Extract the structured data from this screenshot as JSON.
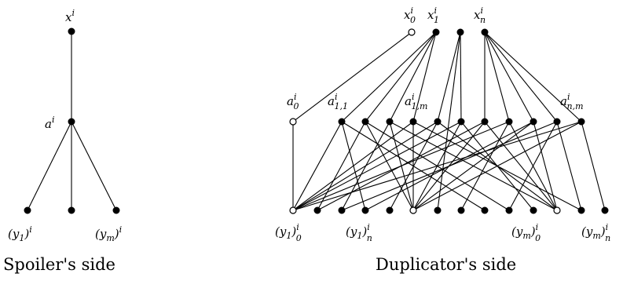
{
  "spoiler": {
    "caption": "Spoiler's side",
    "labels": {
      "top": {
        "base": "x",
        "sup": "i",
        "sub": ""
      },
      "mid": {
        "base": "a",
        "sup": "i",
        "sub": ""
      },
      "left": {
        "pre": "(y",
        "sub1": "1",
        "post": ")",
        "sup": "i",
        "sub": ""
      },
      "right": {
        "pre": "(y",
        "sub1": "m",
        "post": ")",
        "sup": "i",
        "sub": ""
      }
    }
  },
  "duplicator": {
    "caption": "Duplicator's side",
    "labels": {
      "x0": {
        "base": "x",
        "sup": "i",
        "sub": "0"
      },
      "x1": {
        "base": "x",
        "sup": "i",
        "sub": "1"
      },
      "xn": {
        "base": "x",
        "sup": "i",
        "sub": "n"
      },
      "a0": {
        "base": "a",
        "sup": "i",
        "sub": "0"
      },
      "a11": {
        "base": "a",
        "sup": "i",
        "sub": "1,1"
      },
      "a1m": {
        "base": "a",
        "sup": "i",
        "sub": "1,m"
      },
      "anm": {
        "base": "a",
        "sup": "i",
        "sub": "n,m"
      },
      "y10": {
        "pre": "(y",
        "sub1": "1",
        "post": ")",
        "sup": "i",
        "sub": "0"
      },
      "y1n": {
        "pre": "(y",
        "sub1": "1",
        "post": ")",
        "sup": "i",
        "sub": "n"
      },
      "ym0": {
        "pre": "(y",
        "sub1": "m",
        "post": ")",
        "sup": "i",
        "sub": "0"
      },
      "ymn": {
        "pre": "(y",
        "sub1": "m",
        "post": ")",
        "sup": "i",
        "sub": "n"
      }
    }
  },
  "colors": {
    "ink": "#000000",
    "background": "#ffffff"
  }
}
